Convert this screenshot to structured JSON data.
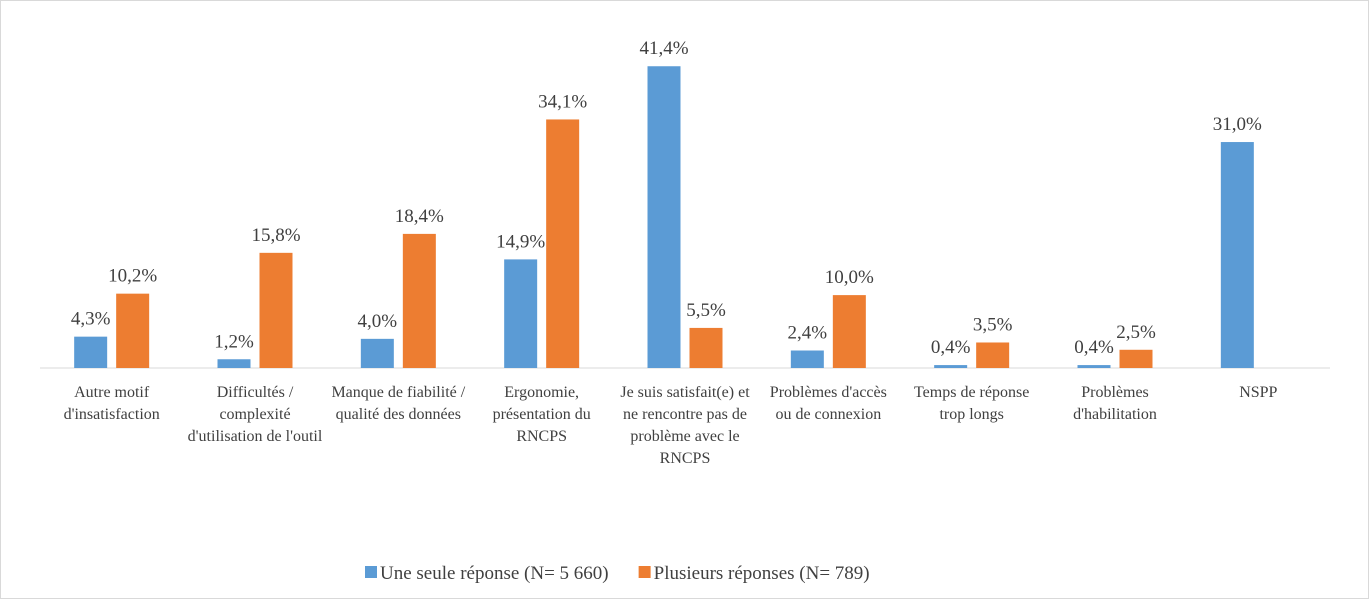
{
  "chart_data": {
    "type": "bar",
    "categories": [
      "Autre motif d'insatisfaction",
      "Difficultés / complexité d'utilisation de l'outil",
      "Manque de fiabilité / qualité des données",
      "Ergonomie, présentation du RNCPS",
      "Je suis satisfait(e) et ne rencontre pas de problème avec le RNCPS",
      "Problèmes d'accès ou de connexion",
      "Temps de réponse trop longs",
      "Problèmes d'habilitation",
      "NSPP"
    ],
    "series": [
      {
        "name": "Une seule réponse (N= 5 660)",
        "color": "#5b9bd5",
        "values": [
          4.3,
          1.2,
          4.0,
          14.9,
          41.4,
          2.4,
          0.4,
          0.4,
          31.0
        ],
        "value_labels": [
          "4,3%",
          "1,2%",
          "4,0%",
          "14,9%",
          "41,4%",
          "2,4%",
          "0,4%",
          "0,4%",
          "31,0%"
        ]
      },
      {
        "name": "Plusieurs réponses (N= 789)",
        "color": "#ed7d31",
        "values": [
          10.2,
          15.8,
          18.4,
          34.1,
          5.5,
          10.0,
          3.5,
          2.5,
          null
        ],
        "value_labels": [
          "10,2%",
          "15,8%",
          "18,4%",
          "34,1%",
          "5,5%",
          "10,0%",
          "3,5%",
          "2,5%",
          null
        ]
      }
    ],
    "ylim": [
      0,
      45
    ],
    "legend": "bottom"
  }
}
